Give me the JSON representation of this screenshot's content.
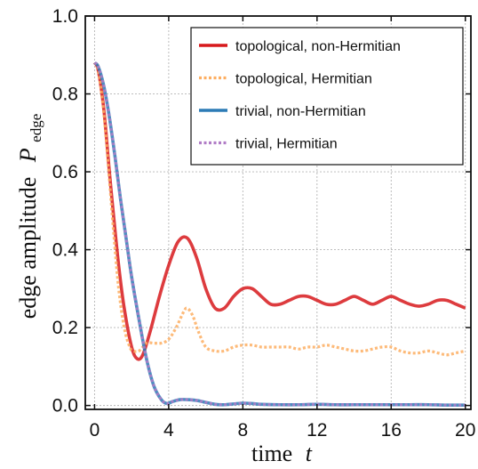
{
  "chart_data": {
    "type": "line",
    "xlabel": "time",
    "xlabel_symbol": "t",
    "ylabel": "edge amplitude",
    "ylabel_symbol": "P",
    "ylabel_subscript": "edge",
    "xlim": [
      -0.5,
      20.3
    ],
    "ylim": [
      -0.01,
      1.0
    ],
    "x_ticks": [
      0,
      4,
      8,
      12,
      16,
      20
    ],
    "y_ticks": [
      0.0,
      0.2,
      0.4,
      0.6,
      0.8,
      1.0
    ],
    "x_tick_labels": [
      "0",
      "4",
      "8",
      "12",
      "16",
      "20"
    ],
    "y_tick_labels": [
      "0.0",
      "0.2",
      "0.4",
      "0.6",
      "0.8",
      "1.0"
    ],
    "grid": true,
    "legend_position": "top-right",
    "series": [
      {
        "name": "topological, non-Hermitian",
        "color": "#d7191c",
        "style": "solid",
        "x": [
          0,
          0.2,
          0.5,
          0.8,
          1.0,
          1.3,
          1.6,
          2.0,
          2.3,
          2.6,
          3.0,
          3.5,
          4.0,
          4.5,
          5.0,
          5.5,
          6.0,
          6.5,
          7.0,
          7.5,
          8.0,
          8.5,
          9.0,
          9.5,
          10.0,
          10.5,
          11.0,
          11.5,
          12.0,
          12.5,
          13.0,
          13.5,
          14.0,
          14.5,
          15.0,
          15.5,
          16.0,
          16.5,
          17.0,
          17.5,
          18.0,
          18.5,
          19.0,
          19.5,
          20.0
        ],
        "y": [
          0.88,
          0.86,
          0.76,
          0.6,
          0.5,
          0.36,
          0.25,
          0.15,
          0.12,
          0.13,
          0.19,
          0.28,
          0.36,
          0.42,
          0.43,
          0.38,
          0.3,
          0.25,
          0.25,
          0.28,
          0.3,
          0.3,
          0.28,
          0.26,
          0.26,
          0.27,
          0.28,
          0.28,
          0.27,
          0.26,
          0.26,
          0.27,
          0.28,
          0.27,
          0.26,
          0.27,
          0.28,
          0.27,
          0.26,
          0.255,
          0.26,
          0.27,
          0.27,
          0.26,
          0.25
        ]
      },
      {
        "name": "topological, Hermitian",
        "color": "#fdae61",
        "style": "dashed",
        "x": [
          0,
          0.2,
          0.5,
          0.8,
          1.0,
          1.3,
          1.6,
          1.9,
          2.1,
          2.4,
          2.8,
          3.2,
          3.6,
          4.0,
          4.4,
          4.8,
          5.0,
          5.3,
          5.6,
          6.0,
          6.5,
          7.0,
          7.5,
          8.0,
          8.5,
          9.0,
          9.5,
          10.0,
          10.5,
          11.0,
          11.5,
          12.0,
          12.5,
          13.0,
          13.5,
          14.0,
          14.5,
          15.0,
          15.5,
          16.0,
          16.5,
          17.0,
          17.5,
          18.0,
          18.5,
          19.0,
          19.5,
          20.0
        ],
        "y": [
          0.88,
          0.86,
          0.75,
          0.58,
          0.46,
          0.3,
          0.2,
          0.15,
          0.14,
          0.14,
          0.16,
          0.16,
          0.16,
          0.17,
          0.2,
          0.24,
          0.25,
          0.23,
          0.19,
          0.15,
          0.14,
          0.14,
          0.15,
          0.155,
          0.155,
          0.15,
          0.15,
          0.15,
          0.15,
          0.145,
          0.15,
          0.15,
          0.155,
          0.15,
          0.145,
          0.14,
          0.14,
          0.145,
          0.15,
          0.15,
          0.14,
          0.135,
          0.135,
          0.14,
          0.135,
          0.13,
          0.135,
          0.14
        ]
      },
      {
        "name": "trivial, non-Hermitian",
        "color": "#2c7bb6",
        "style": "solid",
        "x": [
          0,
          0.2,
          0.5,
          0.8,
          1.1,
          1.4,
          1.7,
          2.0,
          2.4,
          2.8,
          3.2,
          3.6,
          3.9,
          4.2,
          4.6,
          5.0,
          5.5,
          6.0,
          6.5,
          7.0,
          7.5,
          8.0,
          8.5,
          9.0,
          10.0,
          11.0,
          12.0,
          13.0,
          14.0,
          15.0,
          16.0,
          17.0,
          18.0,
          19.0,
          20.0
        ],
        "y": [
          0.88,
          0.87,
          0.82,
          0.74,
          0.64,
          0.53,
          0.43,
          0.33,
          0.22,
          0.12,
          0.05,
          0.015,
          0.005,
          0.01,
          0.015,
          0.015,
          0.013,
          0.008,
          0.003,
          0.002,
          0.004,
          0.006,
          0.005,
          0.003,
          0.002,
          0.002,
          0.003,
          0.002,
          0.002,
          0.002,
          0.002,
          0.002,
          0.002,
          0.001,
          0.001
        ]
      },
      {
        "name": "trivial, Hermitian",
        "color": "#b07cc6",
        "style": "dashed",
        "x": [
          0,
          0.2,
          0.5,
          0.8,
          1.1,
          1.4,
          1.7,
          2.0,
          2.4,
          2.8,
          3.2,
          3.6,
          3.9,
          4.2,
          4.6,
          5.0,
          5.5,
          6.0,
          6.5,
          7.0,
          7.5,
          8.0,
          8.5,
          9.0,
          10.0,
          11.0,
          12.0,
          13.0,
          14.0,
          15.0,
          16.0,
          17.0,
          18.0,
          19.0,
          20.0
        ],
        "y": [
          0.88,
          0.87,
          0.82,
          0.74,
          0.64,
          0.53,
          0.43,
          0.33,
          0.22,
          0.12,
          0.05,
          0.015,
          0.005,
          0.01,
          0.015,
          0.015,
          0.013,
          0.008,
          0.003,
          0.002,
          0.004,
          0.006,
          0.005,
          0.003,
          0.002,
          0.002,
          0.003,
          0.002,
          0.002,
          0.002,
          0.002,
          0.002,
          0.002,
          0.001,
          0.001
        ]
      }
    ]
  }
}
